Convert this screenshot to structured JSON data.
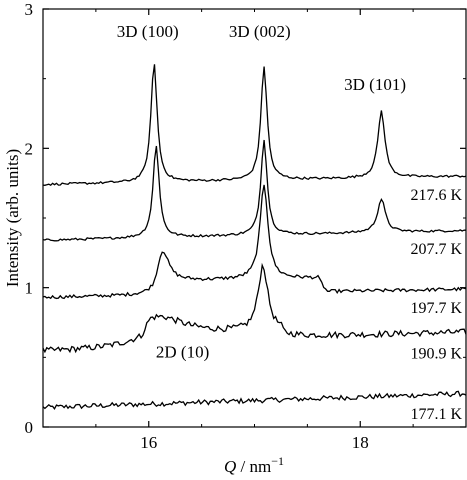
{
  "chart_data": {
    "type": "line",
    "title": "",
    "xlabel_symbol": "Q",
    "xlabel_unit": " / nm",
    "xlabel_exponent": "−1",
    "ylabel": "Intensity (arb. units)",
    "xlim": [
      15,
      19
    ],
    "ylim": [
      0,
      3
    ],
    "x_ticks": [
      16,
      18
    ],
    "y_ticks": [
      0,
      1,
      2,
      3
    ],
    "x_tick_labels": [
      "16",
      "18"
    ],
    "y_tick_labels": [
      "0",
      "1",
      "2",
      "3"
    ],
    "grid": false,
    "series": [
      {
        "name": "177.1 K",
        "baseline": 0.14,
        "tilt": 0.1,
        "noise": 0.018,
        "peaks": []
      },
      {
        "name": "190.9 K",
        "baseline": 0.54,
        "tilt": 0.08,
        "noise": 0.022,
        "peaks": [
          {
            "x": 16.1,
            "height": 0.13,
            "width": 0.28
          },
          {
            "x": 17.08,
            "height": 0.47,
            "width": 0.055
          }
        ],
        "steps": [
          {
            "x": 15.93,
            "height": 0.1,
            "end": 17.25,
            "drop": 0.06
          }
        ]
      },
      {
        "name": "197.7 K",
        "baseline": 0.93,
        "tilt": 0.06,
        "noise": 0.012,
        "peaks": [
          {
            "x": 16.13,
            "height": 0.22,
            "width": 0.07
          },
          {
            "x": 17.09,
            "height": 0.68,
            "width": 0.045
          }
        ],
        "steps": [
          {
            "x": 16.05,
            "height": 0.1,
            "end": 17.6,
            "drop": 0.0
          }
        ]
      },
      {
        "name": "207.7 K",
        "baseline": 1.34,
        "tilt": 0.07,
        "noise": 0.008,
        "peaks": [
          {
            "x": 16.07,
            "height": 0.66,
            "width": 0.035
          },
          {
            "x": 17.09,
            "height": 0.69,
            "width": 0.035
          },
          {
            "x": 18.2,
            "height": 0.24,
            "width": 0.045
          }
        ]
      },
      {
        "name": "217.6 K",
        "baseline": 1.74,
        "tilt": 0.06,
        "noise": 0.008,
        "peaks": [
          {
            "x": 16.05,
            "height": 0.86,
            "width": 0.035
          },
          {
            "x": 17.09,
            "height": 0.82,
            "width": 0.035
          },
          {
            "x": 18.2,
            "height": 0.48,
            "width": 0.04
          }
        ]
      }
    ],
    "peak_annotations": [
      {
        "text": "3D (100)",
        "x": 15.99,
        "y": 2.8
      },
      {
        "text": "3D (002)",
        "x": 17.05,
        "y": 2.8
      },
      {
        "text": "3D (101)",
        "x": 18.14,
        "y": 2.42
      },
      {
        "text": "2D (10)",
        "x": 16.32,
        "y": 0.5
      }
    ]
  }
}
